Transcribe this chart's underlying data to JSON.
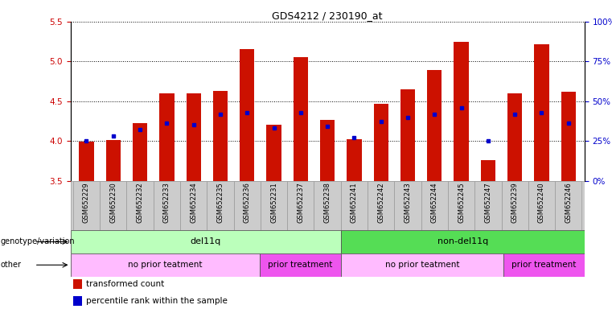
{
  "title": "GDS4212 / 230190_at",
  "samples": [
    "GSM652229",
    "GSM652230",
    "GSM652232",
    "GSM652233",
    "GSM652234",
    "GSM652235",
    "GSM652236",
    "GSM652231",
    "GSM652237",
    "GSM652238",
    "GSM652241",
    "GSM652242",
    "GSM652243",
    "GSM652244",
    "GSM652245",
    "GSM652247",
    "GSM652239",
    "GSM652240",
    "GSM652246"
  ],
  "bar_values": [
    3.99,
    4.01,
    4.22,
    4.6,
    4.6,
    4.63,
    5.15,
    4.2,
    5.05,
    4.27,
    4.02,
    4.47,
    4.65,
    4.89,
    5.25,
    3.76,
    4.6,
    5.22,
    4.62
  ],
  "dot_values_pct": [
    25,
    28,
    32,
    36,
    35,
    42,
    43,
    33,
    43,
    34,
    27,
    37,
    40,
    42,
    46,
    25,
    42,
    43,
    36
  ],
  "bar_color": "#cc1100",
  "dot_color": "#0000cc",
  "ylim_left": [
    3.5,
    5.5
  ],
  "yticks_left": [
    3.5,
    4.0,
    4.5,
    5.0,
    5.5
  ],
  "ylim_right": [
    0,
    100
  ],
  "yticks_right": [
    0,
    25,
    50,
    75,
    100
  ],
  "ytick_labels_right": [
    "0%",
    "25%",
    "50%",
    "75%",
    "100%"
  ],
  "genotype_groups": [
    {
      "label": "del11q",
      "start": 0,
      "end": 10,
      "color": "#bbffbb"
    },
    {
      "label": "non-del11q",
      "start": 10,
      "end": 19,
      "color": "#55dd55"
    }
  ],
  "other_groups": [
    {
      "label": "no prior teatment",
      "start": 0,
      "end": 7,
      "color": "#ffbbff"
    },
    {
      "label": "prior treatment",
      "start": 7,
      "end": 10,
      "color": "#ee55ee"
    },
    {
      "label": "no prior teatment",
      "start": 10,
      "end": 16,
      "color": "#ffbbff"
    },
    {
      "label": "prior treatment",
      "start": 16,
      "end": 19,
      "color": "#ee55ee"
    }
  ],
  "legend_items": [
    {
      "label": "transformed count",
      "color": "#cc1100"
    },
    {
      "label": "percentile rank within the sample",
      "color": "#0000cc"
    }
  ],
  "genotype_label": "genotype/variation",
  "other_label": "other",
  "bg_color": "#ffffff",
  "ytick_color_left": "#cc0000",
  "ytick_color_right": "#0000cc",
  "tick_bg_color": "#cccccc",
  "tick_border_color": "#999999"
}
